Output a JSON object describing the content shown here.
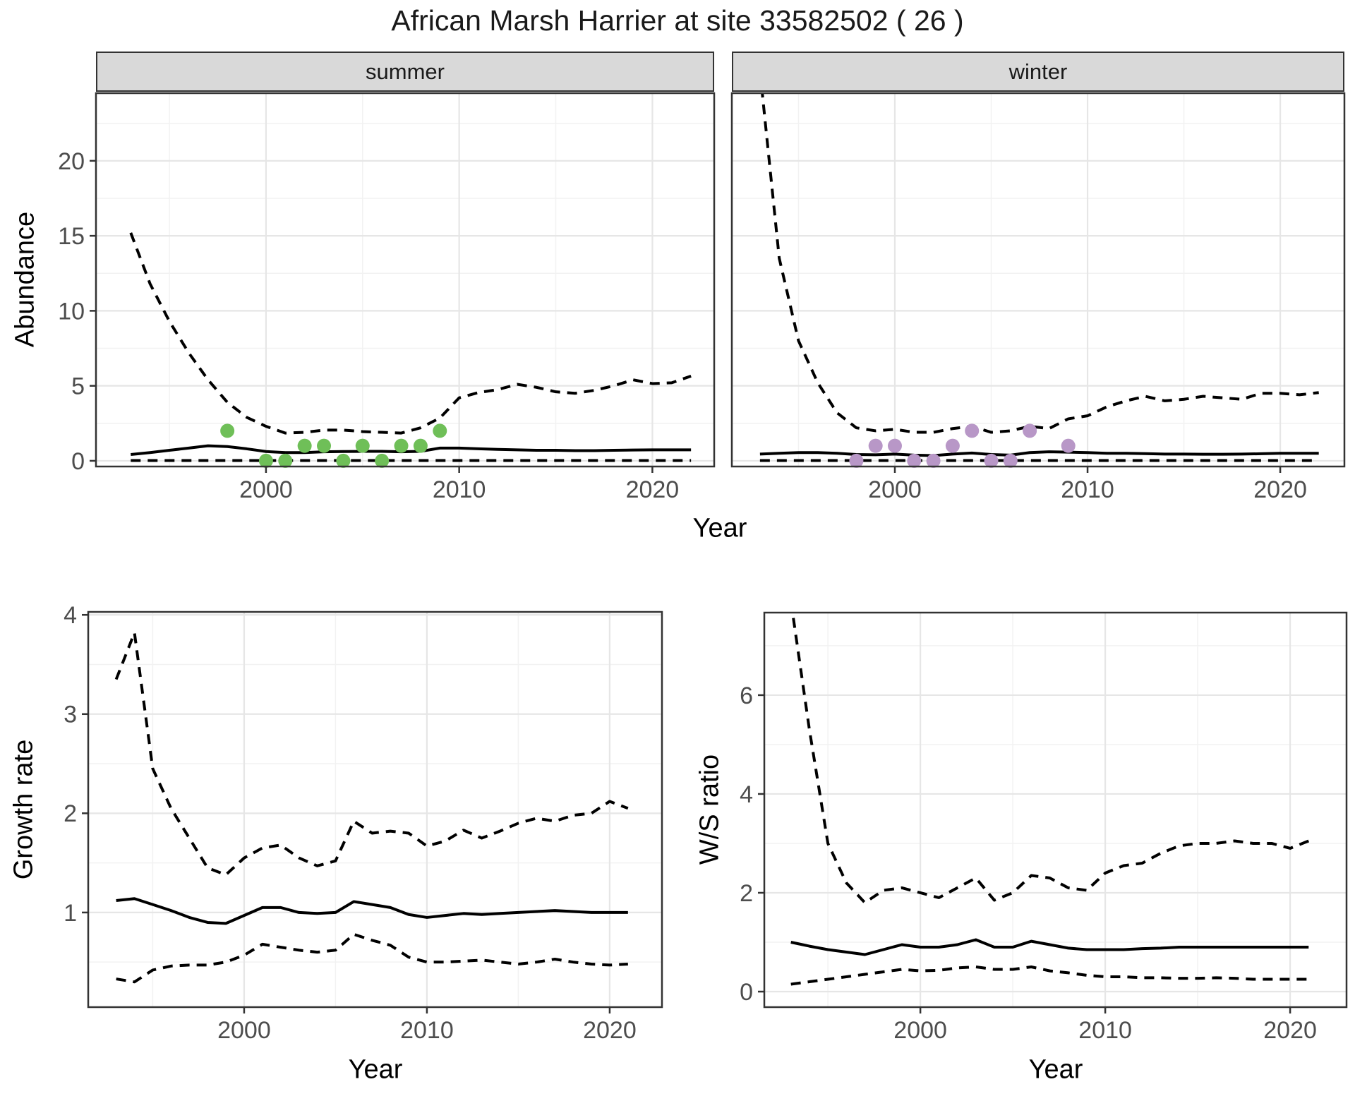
{
  "title": "African Marsh Harrier at site 33582502 ( 26 )",
  "colors": {
    "summer_point": "#6fbf58",
    "winter_point": "#b897c7",
    "line": "#000000",
    "grid_major": "#e6e6e6",
    "grid_minor": "#f2f2f2",
    "panel_border": "#333333",
    "strip_bg": "#d9d9d9",
    "tick_text": "#4d4d4d"
  },
  "chart_data": [
    {
      "id": "abundance-summer",
      "type": "line",
      "facet": "summer",
      "xlabel": "Year",
      "ylabel": "Abundance",
      "xlim": [
        1991.2,
        2023.2
      ],
      "ylim": [
        -0.38,
        24.51
      ],
      "xticks": [
        2000,
        2010,
        2020
      ],
      "yticks": [
        0,
        5,
        10,
        15,
        20
      ],
      "xminor": [
        1995,
        2005,
        2015
      ],
      "yminor": [
        2.5,
        7.5,
        12.5,
        17.5,
        22.5
      ],
      "grid": "on",
      "legend": "none",
      "x": [
        1993,
        1994,
        1995,
        1996,
        1997,
        1998,
        1999,
        2000,
        2001,
        2002,
        2003,
        2004,
        2005,
        2006,
        2007,
        2008,
        2009,
        2010,
        2011,
        2012,
        2013,
        2014,
        2015,
        2016,
        2017,
        2018,
        2019,
        2020,
        2021,
        2022
      ],
      "series": [
        {
          "name": "upper_ci",
          "style": "dashed",
          "values": [
            15.2,
            11.8,
            9.3,
            7.2,
            5.4,
            3.9,
            2.9,
            2.3,
            1.85,
            1.9,
            2.05,
            2.05,
            1.95,
            1.9,
            1.85,
            2.2,
            2.85,
            4.2,
            4.55,
            4.75,
            5.1,
            4.9,
            4.6,
            4.5,
            4.7,
            5.0,
            5.4,
            5.15,
            5.2,
            5.65
          ]
        },
        {
          "name": "median",
          "style": "solid",
          "values": [
            0.42,
            0.55,
            0.7,
            0.85,
            1.0,
            0.95,
            0.8,
            0.62,
            0.55,
            0.55,
            0.6,
            0.62,
            0.63,
            0.63,
            0.6,
            0.63,
            0.85,
            0.85,
            0.8,
            0.76,
            0.73,
            0.7,
            0.7,
            0.68,
            0.68,
            0.7,
            0.72,
            0.73,
            0.73,
            0.73
          ]
        },
        {
          "name": "lower_ci",
          "style": "dashed",
          "values": [
            0.02,
            0.02,
            0.02,
            0.02,
            0.02,
            0.02,
            0.02,
            0.02,
            0.02,
            0.02,
            0.02,
            0.02,
            0.02,
            0.02,
            0.02,
            0.02,
            0.02,
            0.02,
            0.02,
            0.02,
            0.02,
            0.02,
            0.02,
            0.02,
            0.02,
            0.02,
            0.02,
            0.02,
            0.02,
            0.02
          ]
        }
      ],
      "points": {
        "name": "observed-counts",
        "color": "#6fbf58",
        "x": [
          1998,
          2000,
          2001,
          2002,
          2003,
          2004,
          2005,
          2006,
          2007,
          2008,
          2009
        ],
        "y": [
          2,
          0,
          0,
          1,
          1,
          0,
          1,
          0,
          1,
          1,
          2
        ]
      }
    },
    {
      "id": "abundance-winter",
      "type": "line",
      "facet": "winter",
      "xlabel": "Year",
      "ylabel": "Abundance",
      "xlim": [
        1991.54,
        2023.33
      ],
      "ylim": [
        -0.38,
        24.51
      ],
      "xticks": [
        2000,
        2010,
        2020
      ],
      "yticks": [
        0,
        5,
        10,
        15,
        20
      ],
      "xminor": [
        1995,
        2005,
        2015
      ],
      "yminor": [
        2.5,
        7.5,
        12.5,
        17.5,
        22.5
      ],
      "grid": "on",
      "legend": "none",
      "x": [
        1993,
        1994,
        1995,
        1996,
        1997,
        1998,
        1999,
        2000,
        2001,
        2002,
        2003,
        2004,
        2005,
        2006,
        2007,
        2008,
        2009,
        2010,
        2011,
        2012,
        2013,
        2014,
        2015,
        2016,
        2017,
        2018,
        2019,
        2020,
        2021,
        2022
      ],
      "series": [
        {
          "name": "upper_ci",
          "style": "dashed",
          "values": [
            26.0,
            13.5,
            8.0,
            5.2,
            3.2,
            2.2,
            2.0,
            2.1,
            1.9,
            1.9,
            2.15,
            2.3,
            1.9,
            2.0,
            2.3,
            2.15,
            2.8,
            3.0,
            3.6,
            4.0,
            4.3,
            4.0,
            4.1,
            4.3,
            4.2,
            4.1,
            4.5,
            4.5,
            4.4,
            4.55
          ]
        },
        {
          "name": "median",
          "style": "solid",
          "values": [
            0.45,
            0.5,
            0.55,
            0.55,
            0.5,
            0.42,
            0.4,
            0.45,
            0.38,
            0.35,
            0.45,
            0.52,
            0.42,
            0.38,
            0.55,
            0.6,
            0.58,
            0.55,
            0.5,
            0.5,
            0.48,
            0.45,
            0.45,
            0.44,
            0.44,
            0.45,
            0.47,
            0.5,
            0.5,
            0.5
          ]
        },
        {
          "name": "lower_ci",
          "style": "dashed",
          "values": [
            0.02,
            0.02,
            0.02,
            0.02,
            0.02,
            0.02,
            0.02,
            0.02,
            0.02,
            0.02,
            0.02,
            0.02,
            0.02,
            0.02,
            0.02,
            0.02,
            0.02,
            0.02,
            0.02,
            0.02,
            0.02,
            0.02,
            0.02,
            0.02,
            0.02,
            0.02,
            0.02,
            0.02,
            0.02,
            0.02
          ]
        }
      ],
      "points": {
        "name": "observed-counts",
        "color": "#b897c7",
        "x": [
          1998,
          1999,
          2000,
          2001,
          2002,
          2003,
          2004,
          2005,
          2006,
          2007,
          2009
        ],
        "y": [
          0,
          1,
          1,
          0,
          0,
          1,
          2,
          0,
          0,
          2,
          1
        ]
      }
    },
    {
      "id": "growth-rate",
      "type": "line",
      "facet": null,
      "xlabel": "Year",
      "ylabel": "Growth rate",
      "xlim": [
        1991.47,
        2022.86
      ],
      "ylim": [
        0.046,
        4.03
      ],
      "xticks": [
        2000,
        2010,
        2020
      ],
      "yticks": [
        1,
        2,
        3,
        4
      ],
      "xminor": [
        1995,
        2005,
        2015
      ],
      "yminor": [
        0.5,
        1.5,
        2.5,
        3.5
      ],
      "grid": "on",
      "legend": "none",
      "x": [
        1993,
        1994,
        1995,
        1996,
        1997,
        1998,
        1999,
        2000,
        2001,
        2002,
        2003,
        2004,
        2005,
        2006,
        2007,
        2008,
        2009,
        2010,
        2011,
        2012,
        2013,
        2014,
        2015,
        2016,
        2017,
        2018,
        2019,
        2020,
        2021
      ],
      "series": [
        {
          "name": "upper_ci",
          "style": "dashed",
          "values": [
            3.35,
            3.82,
            2.45,
            2.05,
            1.75,
            1.45,
            1.38,
            1.55,
            1.65,
            1.68,
            1.55,
            1.47,
            1.52,
            1.92,
            1.8,
            1.82,
            1.8,
            1.67,
            1.72,
            1.83,
            1.75,
            1.82,
            1.9,
            1.95,
            1.92,
            1.98,
            2.0,
            2.12,
            2.05
          ]
        },
        {
          "name": "median",
          "style": "solid",
          "values": [
            1.12,
            1.14,
            1.08,
            1.02,
            0.95,
            0.9,
            0.89,
            0.97,
            1.05,
            1.05,
            1.0,
            0.99,
            1.0,
            1.11,
            1.08,
            1.05,
            0.98,
            0.95,
            0.97,
            0.99,
            0.98,
            0.99,
            1.0,
            1.01,
            1.02,
            1.01,
            1.0,
            1.0,
            1.0
          ]
        },
        {
          "name": "lower_ci",
          "style": "dashed",
          "values": [
            0.33,
            0.3,
            0.42,
            0.46,
            0.47,
            0.47,
            0.5,
            0.57,
            0.68,
            0.65,
            0.62,
            0.6,
            0.62,
            0.78,
            0.72,
            0.67,
            0.55,
            0.5,
            0.5,
            0.51,
            0.52,
            0.5,
            0.48,
            0.5,
            0.53,
            0.5,
            0.48,
            0.47,
            0.48
          ]
        }
      ]
    },
    {
      "id": "ws-ratio",
      "type": "line",
      "facet": null,
      "xlabel": "Year",
      "ylabel": "W/S ratio",
      "xlim": [
        1991.56,
        2023.05
      ],
      "ylim": [
        -0.314,
        7.67
      ],
      "xticks": [
        2000,
        2010,
        2020
      ],
      "yticks": [
        0,
        2,
        4,
        6
      ],
      "xminor": [
        1995,
        2005,
        2015
      ],
      "yminor": [
        1,
        3,
        5,
        7
      ],
      "grid": "on",
      "legend": "none",
      "x": [
        1993,
        1994,
        1995,
        1996,
        1997,
        1998,
        1999,
        2000,
        2001,
        2002,
        2003,
        2004,
        2005,
        2006,
        2007,
        2008,
        2009,
        2010,
        2011,
        2012,
        2013,
        2014,
        2015,
        2016,
        2017,
        2018,
        2019,
        2020,
        2021
      ],
      "series": [
        {
          "name": "upper_ci",
          "style": "dashed",
          "values": [
            7.9,
            5.3,
            3.0,
            2.2,
            1.8,
            2.05,
            2.1,
            2.0,
            1.9,
            2.1,
            2.3,
            1.85,
            2.0,
            2.35,
            2.3,
            2.1,
            2.05,
            2.4,
            2.55,
            2.6,
            2.8,
            2.95,
            3.0,
            3.0,
            3.05,
            3.0,
            3.0,
            2.9,
            3.05
          ]
        },
        {
          "name": "median",
          "style": "solid",
          "values": [
            1.0,
            0.92,
            0.85,
            0.8,
            0.75,
            0.85,
            0.95,
            0.9,
            0.9,
            0.95,
            1.05,
            0.9,
            0.9,
            1.02,
            0.95,
            0.88,
            0.85,
            0.85,
            0.85,
            0.87,
            0.88,
            0.9,
            0.9,
            0.9,
            0.9,
            0.9,
            0.9,
            0.9,
            0.9
          ]
        },
        {
          "name": "lower_ci",
          "style": "dashed",
          "values": [
            0.15,
            0.2,
            0.25,
            0.3,
            0.35,
            0.4,
            0.45,
            0.42,
            0.43,
            0.48,
            0.5,
            0.45,
            0.45,
            0.5,
            0.42,
            0.38,
            0.33,
            0.3,
            0.3,
            0.28,
            0.28,
            0.27,
            0.27,
            0.28,
            0.27,
            0.25,
            0.25,
            0.25,
            0.25
          ]
        }
      ]
    }
  ]
}
